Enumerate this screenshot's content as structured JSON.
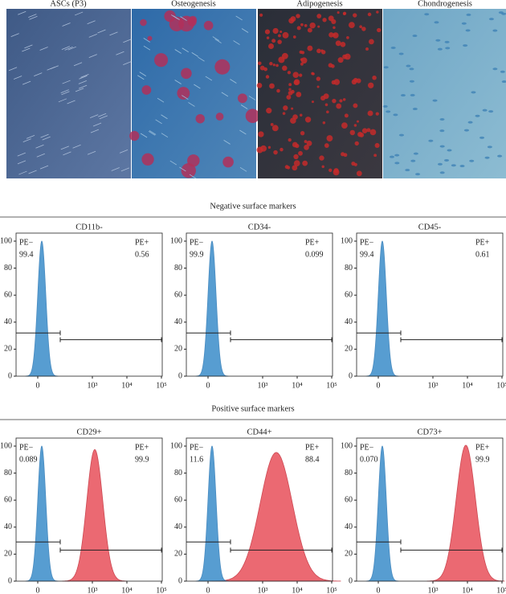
{
  "images": [
    "ASCs (P3)",
    "Osteogenesis",
    "Adipogenesis",
    "Chondrogenesis"
  ],
  "negative": {
    "title": "Negative surface markers",
    "panels": [
      {
        "title": "CD11b-",
        "neg_label": "PE−",
        "neg_value": "99.4",
        "pos_label": "PE+",
        "pos_value": "0.56"
      },
      {
        "title": "CD34-",
        "neg_label": "PE−",
        "neg_value": "99.9",
        "pos_label": "PE+",
        "pos_value": "0.099"
      },
      {
        "title": "CD45-",
        "neg_label": "PE−",
        "neg_value": "99.4",
        "pos_label": "PE+",
        "pos_value": "0.61"
      }
    ]
  },
  "positive": {
    "title": "Positive surface markers",
    "panels": [
      {
        "title": "CD29+",
        "neg_label": "PE−",
        "neg_value": "0.089",
        "pos_label": "PE+",
        "pos_value": "99.9"
      },
      {
        "title": "CD44+",
        "neg_label": "PE−",
        "neg_value": "11.6",
        "pos_label": "PE+",
        "pos_value": "88.4"
      },
      {
        "title": "CD73+",
        "neg_label": "PE−",
        "neg_value": "0.070",
        "pos_label": "PE+",
        "pos_value": "99.9"
      }
    ]
  },
  "axis": {
    "yticks": [
      0,
      20,
      40,
      60,
      80,
      100
    ],
    "xticks": [
      {
        "value": 0,
        "label": "0"
      },
      {
        "value": 1000,
        "label": "10³"
      },
      {
        "value": 10000,
        "label": "10⁴"
      },
      {
        "value": 100000,
        "label": "10⁵"
      }
    ]
  }
}
